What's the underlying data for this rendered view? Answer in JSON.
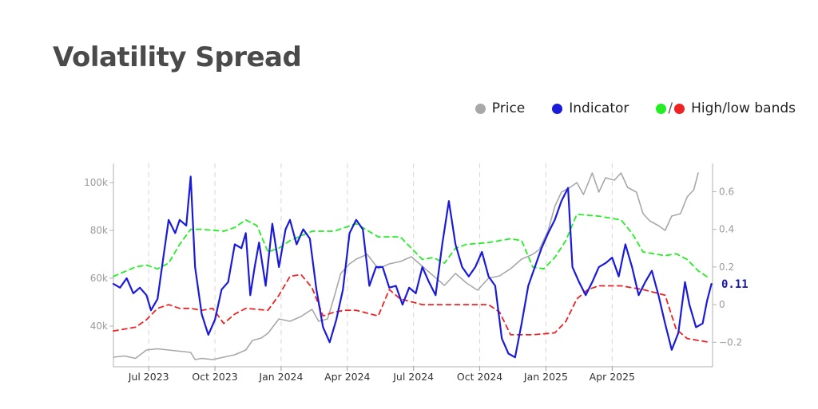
{
  "chart_data": {
    "type": "line",
    "title": "Volatility Spread",
    "legend": {
      "placement": "top-right",
      "items": [
        {
          "label": "Price",
          "color": "#a8a8a8"
        },
        {
          "label": "Indicator",
          "color": "#1a1adb"
        },
        {
          "label": "High/low bands",
          "colors": [
            "#22ee22",
            "#ee2222"
          ]
        }
      ],
      "slash": "/"
    },
    "x_ticks": [
      "Jul 2023",
      "Oct 2023",
      "Jan 2024",
      "Apr 2024",
      "Jul 2024",
      "Oct 2024",
      "Jan 2025",
      "Apr 2025"
    ],
    "x_months_range": [
      0,
      26.5
    ],
    "y_left": {
      "ticks": [
        "100k",
        "80k",
        "60k",
        "40k"
      ],
      "tick_values": [
        100000,
        80000,
        60000,
        40000
      ],
      "range": [
        23000,
        108000
      ]
    },
    "y_right": {
      "ticks": [
        "0.6",
        "0.4",
        "0.2",
        "0",
        "−0.2"
      ],
      "tick_values": [
        0.6,
        0.4,
        0.2,
        0,
        -0.2
      ],
      "range": [
        -0.33,
        0.75
      ]
    },
    "grid": "vertical-dashed",
    "last_value_label": "0.11",
    "series": [
      {
        "name": "Price",
        "axis": "left",
        "color": "#a8a8a8",
        "points": [
          [
            0,
            27000
          ],
          [
            0.5,
            27500
          ],
          [
            1,
            26500
          ],
          [
            1.5,
            30000
          ],
          [
            2,
            30500
          ],
          [
            2.5,
            30000
          ],
          [
            3,
            29500
          ],
          [
            3.5,
            29000
          ],
          [
            3.7,
            26000
          ],
          [
            4,
            26500
          ],
          [
            4.5,
            26000
          ],
          [
            5,
            27000
          ],
          [
            5.5,
            28000
          ],
          [
            6,
            30000
          ],
          [
            6.3,
            34000
          ],
          [
            6.7,
            35000
          ],
          [
            7,
            37000
          ],
          [
            7.5,
            43000
          ],
          [
            8,
            42000
          ],
          [
            8.5,
            44000
          ],
          [
            9,
            47000
          ],
          [
            9.3,
            42000
          ],
          [
            9.7,
            43000
          ],
          [
            10,
            52000
          ],
          [
            10.3,
            62000
          ],
          [
            10.7,
            66000
          ],
          [
            11,
            68000
          ],
          [
            11.5,
            70000
          ],
          [
            12,
            64000
          ],
          [
            12.5,
            66000
          ],
          [
            13,
            67000
          ],
          [
            13.5,
            69000
          ],
          [
            14,
            65000
          ],
          [
            14.5,
            61000
          ],
          [
            15,
            57000
          ],
          [
            15.5,
            62000
          ],
          [
            16,
            58000
          ],
          [
            16.5,
            55000
          ],
          [
            17,
            60000
          ],
          [
            17.5,
            61000
          ],
          [
            18,
            64000
          ],
          [
            18.5,
            68000
          ],
          [
            19,
            70000
          ],
          [
            19.3,
            72000
          ],
          [
            19.7,
            80000
          ],
          [
            20,
            90000
          ],
          [
            20.3,
            96000
          ],
          [
            20.7,
            98000
          ],
          [
            21,
            100000
          ],
          [
            21.3,
            95000
          ],
          [
            21.7,
            104000
          ],
          [
            22,
            96000
          ],
          [
            22.3,
            102000
          ],
          [
            22.7,
            101000
          ],
          [
            23,
            104000
          ],
          [
            23.3,
            98000
          ],
          [
            23.7,
            96000
          ],
          [
            24,
            87000
          ],
          [
            24.3,
            84000
          ],
          [
            24.7,
            82000
          ],
          [
            25,
            80000
          ],
          [
            25.3,
            86000
          ],
          [
            25.7,
            87000
          ],
          [
            26,
            94000
          ],
          [
            26.3,
            97000
          ],
          [
            26.5,
            104000
          ]
        ]
      },
      {
        "name": "Indicator",
        "axis": "right",
        "color": "#1a1adb",
        "points": [
          [
            0,
            0.11
          ],
          [
            0.3,
            0.09
          ],
          [
            0.6,
            0.14
          ],
          [
            0.9,
            0.06
          ],
          [
            1.2,
            0.09
          ],
          [
            1.5,
            0.05
          ],
          [
            1.7,
            -0.03
          ],
          [
            2,
            0.03
          ],
          [
            2.2,
            0.2
          ],
          [
            2.5,
            0.45
          ],
          [
            2.8,
            0.38
          ],
          [
            3,
            0.45
          ],
          [
            3.3,
            0.42
          ],
          [
            3.5,
            0.68
          ],
          [
            3.7,
            0.2
          ],
          [
            4,
            -0.05
          ],
          [
            4.3,
            -0.16
          ],
          [
            4.6,
            -0.08
          ],
          [
            4.9,
            0.08
          ],
          [
            5.2,
            0.12
          ],
          [
            5.5,
            0.32
          ],
          [
            5.8,
            0.3
          ],
          [
            6,
            0.38
          ],
          [
            6.2,
            0.05
          ],
          [
            6.4,
            0.2
          ],
          [
            6.6,
            0.33
          ],
          [
            6.9,
            0.1
          ],
          [
            7.2,
            0.43
          ],
          [
            7.5,
            0.2
          ],
          [
            7.8,
            0.4
          ],
          [
            8,
            0.45
          ],
          [
            8.3,
            0.32
          ],
          [
            8.6,
            0.4
          ],
          [
            8.9,
            0.35
          ],
          [
            9.2,
            0.08
          ],
          [
            9.5,
            -0.12
          ],
          [
            9.8,
            -0.2
          ],
          [
            10.1,
            -0.08
          ],
          [
            10.4,
            0.08
          ],
          [
            10.7,
            0.38
          ],
          [
            11,
            0.45
          ],
          [
            11.3,
            0.4
          ],
          [
            11.6,
            0.1
          ],
          [
            11.9,
            0.2
          ],
          [
            12.2,
            0.2
          ],
          [
            12.5,
            0.09
          ],
          [
            12.8,
            0.1
          ],
          [
            13.1,
            0.0
          ],
          [
            13.4,
            0.09
          ],
          [
            13.7,
            0.06
          ],
          [
            14,
            0.2
          ],
          [
            14.3,
            0.12
          ],
          [
            14.6,
            0.05
          ],
          [
            14.9,
            0.32
          ],
          [
            15.2,
            0.55
          ],
          [
            15.5,
            0.32
          ],
          [
            15.8,
            0.2
          ],
          [
            16.1,
            0.15
          ],
          [
            16.4,
            0.2
          ],
          [
            16.7,
            0.28
          ],
          [
            17,
            0.15
          ],
          [
            17.3,
            0.1
          ],
          [
            17.6,
            -0.18
          ],
          [
            17.9,
            -0.26
          ],
          [
            18.2,
            -0.28
          ],
          [
            18.5,
            -0.1
          ],
          [
            18.8,
            0.1
          ],
          [
            19.1,
            0.2
          ],
          [
            19.4,
            0.3
          ],
          [
            19.7,
            0.38
          ],
          [
            20,
            0.45
          ],
          [
            20.3,
            0.55
          ],
          [
            20.6,
            0.62
          ],
          [
            20.8,
            0.2
          ],
          [
            21.1,
            0.12
          ],
          [
            21.4,
            0.05
          ],
          [
            21.7,
            0.12
          ],
          [
            22,
            0.2
          ],
          [
            22.3,
            0.22
          ],
          [
            22.6,
            0.25
          ],
          [
            22.9,
            0.15
          ],
          [
            23.2,
            0.32
          ],
          [
            23.5,
            0.2
          ],
          [
            23.8,
            0.05
          ],
          [
            24.1,
            0.12
          ],
          [
            24.4,
            0.18
          ],
          [
            24.7,
            0.05
          ],
          [
            25,
            -0.1
          ],
          [
            25.3,
            -0.24
          ],
          [
            25.6,
            -0.15
          ],
          [
            25.9,
            0.12
          ],
          [
            26.1,
            0.0
          ],
          [
            26.4,
            -0.12
          ],
          [
            26.7,
            -0.1
          ],
          [
            26.9,
            0.02
          ],
          [
            27.1,
            0.11
          ]
        ]
      },
      {
        "name": "High band",
        "axis": "right",
        "color": "#22ee22",
        "points": [
          [
            0,
            0.15
          ],
          [
            1,
            0.2
          ],
          [
            1.5,
            0.21
          ],
          [
            2,
            0.19
          ],
          [
            2.5,
            0.22
          ],
          [
            3,
            0.32
          ],
          [
            3.5,
            0.4
          ],
          [
            4,
            0.4
          ],
          [
            5,
            0.39
          ],
          [
            5.5,
            0.41
          ],
          [
            6,
            0.45
          ],
          [
            6.5,
            0.42
          ],
          [
            7,
            0.28
          ],
          [
            7.5,
            0.3
          ],
          [
            8,
            0.34
          ],
          [
            9,
            0.39
          ],
          [
            9.5,
            0.39
          ],
          [
            10,
            0.39
          ],
          [
            11,
            0.43
          ],
          [
            12,
            0.36
          ],
          [
            13,
            0.36
          ],
          [
            14,
            0.24
          ],
          [
            14.5,
            0.25
          ],
          [
            15,
            0.22
          ],
          [
            15.5,
            0.3
          ],
          [
            16,
            0.32
          ],
          [
            17,
            0.33
          ],
          [
            18,
            0.35
          ],
          [
            18.5,
            0.34
          ],
          [
            19,
            0.2
          ],
          [
            19.5,
            0.19
          ],
          [
            20,
            0.25
          ],
          [
            20.5,
            0.34
          ],
          [
            21,
            0.48
          ],
          [
            22,
            0.47
          ],
          [
            23,
            0.45
          ],
          [
            23.5,
            0.38
          ],
          [
            24,
            0.28
          ],
          [
            25,
            0.26
          ],
          [
            25.5,
            0.27
          ],
          [
            26,
            0.24
          ],
          [
            26.5,
            0.18
          ],
          [
            27,
            0.14
          ]
        ]
      },
      {
        "name": "Low band",
        "axis": "right",
        "color": "#ee2222",
        "points": [
          [
            0,
            -0.14
          ],
          [
            1,
            -0.12
          ],
          [
            1.5,
            -0.08
          ],
          [
            2,
            -0.02
          ],
          [
            2.5,
            0.0
          ],
          [
            3,
            -0.02
          ],
          [
            3.5,
            -0.02
          ],
          [
            4,
            -0.03
          ],
          [
            4.5,
            -0.02
          ],
          [
            5,
            -0.1
          ],
          [
            5.5,
            -0.05
          ],
          [
            6,
            -0.02
          ],
          [
            7,
            -0.03
          ],
          [
            7.5,
            0.05
          ],
          [
            8,
            0.15
          ],
          [
            8.5,
            0.16
          ],
          [
            9,
            0.09
          ],
          [
            9.5,
            -0.06
          ],
          [
            10,
            -0.04
          ],
          [
            10.5,
            -0.03
          ],
          [
            11,
            -0.03
          ],
          [
            12,
            -0.06
          ],
          [
            12.5,
            0.08
          ],
          [
            13,
            0.03
          ],
          [
            14,
            0.0
          ],
          [
            15,
            0.0
          ],
          [
            16,
            0.0
          ],
          [
            17,
            0.0
          ],
          [
            17.5,
            -0.04
          ],
          [
            18,
            -0.16
          ],
          [
            19,
            -0.16
          ],
          [
            20,
            -0.15
          ],
          [
            20.5,
            -0.09
          ],
          [
            21,
            0.03
          ],
          [
            21.5,
            0.08
          ],
          [
            22,
            0.1
          ],
          [
            23,
            0.1
          ],
          [
            24,
            0.08
          ],
          [
            25,
            0.05
          ],
          [
            25.5,
            -0.13
          ],
          [
            26,
            -0.18
          ],
          [
            27,
            -0.2
          ]
        ]
      }
    ]
  }
}
